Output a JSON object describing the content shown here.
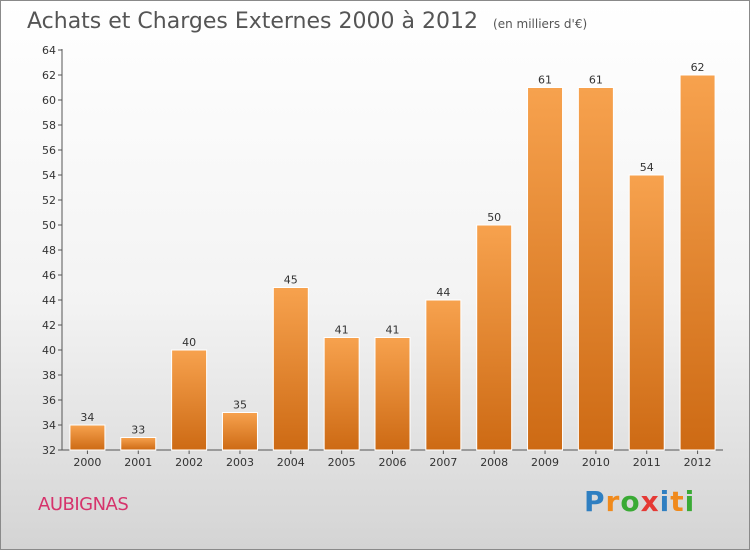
{
  "chart_data": {
    "type": "bar",
    "title": "Achats et Charges Externes 2000 à 2012",
    "unit_note": "(en milliers d'€)",
    "categories": [
      "2000",
      "2001",
      "2002",
      "2003",
      "2004",
      "2005",
      "2006",
      "2007",
      "2008",
      "2009",
      "2010",
      "2011",
      "2012"
    ],
    "values": [
      34,
      33,
      40,
      35,
      45,
      41,
      41,
      44,
      50,
      61,
      61,
      54,
      62
    ],
    "ylim": [
      32,
      64
    ],
    "yticks": [
      32,
      34,
      36,
      38,
      40,
      42,
      44,
      46,
      48,
      50,
      52,
      54,
      56,
      58,
      60,
      62,
      64
    ],
    "grid": false,
    "bar_color_top": "#f7a24e",
    "bar_color_bottom": "#cd6a14"
  },
  "place_name": "AUBIGNAS",
  "brand": {
    "name": "Proxiti",
    "letters": [
      {
        "ch": "P",
        "color": "#2f7fc1"
      },
      {
        "ch": "r",
        "color": "#f08a1c"
      },
      {
        "ch": "o",
        "color": "#3aaa35"
      },
      {
        "ch": "x",
        "color": "#e53935"
      },
      {
        "ch": "i",
        "color": "#2f7fc1"
      },
      {
        "ch": "t",
        "color": "#f08a1c"
      },
      {
        "ch": "i",
        "color": "#3aaa35"
      }
    ]
  }
}
